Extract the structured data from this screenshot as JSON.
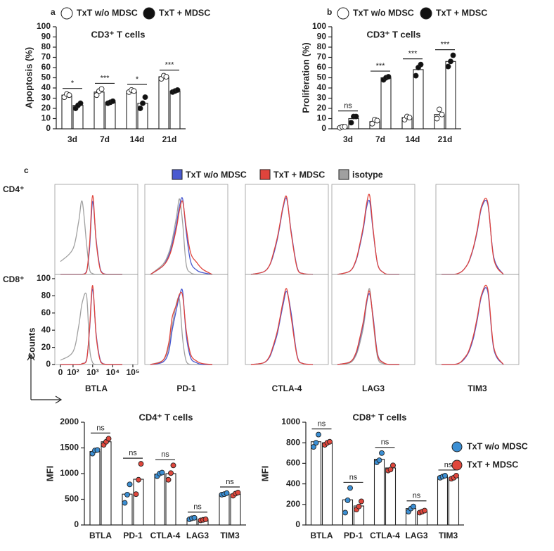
{
  "chart_data": [
    {
      "type": "bar",
      "panel": "a",
      "title": "CD3⁺ T cells",
      "ylabel": "Apoptosis (%)",
      "categories": [
        "3d",
        "7d",
        "14d",
        "21d"
      ],
      "series": [
        {
          "name": "TxT w/o MDSC",
          "color": "#ffffff",
          "values": [
            33,
            36,
            37,
            51
          ],
          "points": [
            [
              31,
              34,
              33
            ],
            [
              33,
              37,
              39
            ],
            [
              36,
              38,
              37
            ],
            [
              49,
              52,
              51
            ]
          ]
        },
        {
          "name": "TxT + MDSC",
          "color": "#111111",
          "values": [
            23,
            26,
            25,
            37
          ],
          "points": [
            [
              20,
              23,
              25
            ],
            [
              25,
              26,
              27
            ],
            [
              20,
              25,
              31
            ],
            [
              36,
              37,
              38
            ]
          ]
        }
      ],
      "sig": [
        "*",
        "***",
        "*",
        "***"
      ],
      "ylim": [
        0,
        100
      ],
      "yticks": [
        0,
        10,
        20,
        30,
        40,
        50,
        60,
        70,
        80,
        90,
        100
      ]
    },
    {
      "type": "bar",
      "panel": "b",
      "title": "CD3⁺ T cells",
      "ylabel": "Proliferation (%)",
      "categories": [
        "3d",
        "7d",
        "14d",
        "21d"
      ],
      "series": [
        {
          "name": "TxT w/o MDSC",
          "color": "#ffffff",
          "values": [
            2,
            7,
            11,
            14
          ],
          "points": [
            [
              1,
              2,
              2
            ],
            [
              5,
              9,
              8
            ],
            [
              9,
              12,
              11
            ],
            [
              10,
              19,
              14
            ]
          ]
        },
        {
          "name": "TxT + MDSC",
          "color": "#111111",
          "values": [
            10,
            50,
            58,
            66
          ],
          "points": [
            [
              6,
              12,
              12
            ],
            [
              48,
              50,
              51
            ],
            [
              52,
              60,
              63
            ],
            [
              61,
              66,
              72
            ]
          ]
        }
      ],
      "sig": [
        "ns",
        "***",
        "***",
        "***"
      ],
      "ylim": [
        0,
        100
      ],
      "yticks": [
        0,
        10,
        20,
        30,
        40,
        50,
        60,
        70,
        80,
        90,
        100
      ]
    },
    {
      "type": "histogram-overlay",
      "panel": "c",
      "ylabel": "Counts",
      "legend": [
        {
          "name": "TxT w/o MDSC",
          "color": "#4a5ad0"
        },
        {
          "name": "TxT + MDSC",
          "color": "#e0443c"
        },
        {
          "name": "isotype",
          "color": "#a0a0a0"
        }
      ],
      "rows": [
        "CD4⁺",
        "CD8⁺"
      ],
      "markers": [
        "BTLA",
        "PD-1",
        "CTLA-4",
        "LAG3",
        "TIM3"
      ],
      "x": [
        0,
        100,
        200,
        300,
        500,
        700,
        1000,
        1500,
        2500,
        5000,
        10000,
        30000
      ],
      "xlim": [
        -25,
        150000
      ],
      "xticks": [
        0,
        {
          "value": 100,
          "label": "10²"
        },
        {
          "value": 1000,
          "label": "10³"
        },
        {
          "value": 10000,
          "label": "10⁴"
        },
        {
          "value": 100000,
          "label": "10⁵"
        }
      ],
      "ylim": [
        0,
        100
      ],
      "yticks": [
        0,
        20,
        40,
        60,
        80,
        100
      ],
      "panels": [
        [
          [
            [
              0,
              0,
              0,
              0,
              4,
              30,
              85,
              40,
              5,
              0,
              0,
              0
            ],
            [
              0,
              0,
              0,
              0,
              3,
              35,
              92,
              38,
              4,
              0,
              0,
              0
            ],
            [
              15,
              30,
              62,
              85,
              35,
              6,
              1,
              0,
              0,
              0,
              0,
              0
            ]
          ],
          [
            [
              0,
              10,
              22,
              35,
              60,
              80,
              88,
              50,
              15,
              5,
              2,
              0
            ],
            [
              0,
              10,
              20,
              32,
              55,
              75,
              85,
              55,
              25,
              14,
              6,
              0
            ],
            [
              0,
              12,
              25,
              40,
              68,
              88,
              60,
              12,
              2,
              0,
              0,
              0
            ]
          ],
          [
            [
              0,
              3,
              10,
              20,
              40,
              58,
              78,
              88,
              50,
              8,
              1,
              0
            ],
            [
              0,
              3,
              10,
              22,
              42,
              60,
              80,
              90,
              48,
              7,
              1,
              0
            ],
            null
          ],
          [
            [
              0,
              4,
              15,
              30,
              55,
              78,
              85,
              50,
              12,
              2,
              0,
              0
            ],
            [
              0,
              4,
              16,
              32,
              58,
              82,
              92,
              52,
              12,
              2,
              0,
              0
            ],
            null
          ],
          [
            [
              0,
              0,
              2,
              5,
              12,
              20,
              32,
              50,
              78,
              82,
              20,
              0
            ],
            [
              0,
              0,
              2,
              5,
              12,
              21,
              33,
              52,
              80,
              84,
              18,
              0
            ],
            null
          ]
        ],
        [
          [
            [
              0,
              0,
              0,
              1,
              6,
              40,
              88,
              35,
              4,
              0,
              0,
              0
            ],
            [
              0,
              0,
              0,
              1,
              5,
              42,
              92,
              33,
              3,
              0,
              0,
              0
            ],
            [
              5,
              15,
              45,
              72,
              80,
              20,
              2,
              0,
              0,
              0,
              0,
              0
            ]
          ],
          [
            [
              0,
              3,
              15,
              40,
              65,
              80,
              85,
              35,
              8,
              2,
              0,
              0
            ],
            [
              0,
              5,
              25,
              55,
              70,
              82,
              80,
              40,
              12,
              4,
              1,
              0
            ],
            [
              0,
              5,
              20,
              45,
              72,
              75,
              30,
              4,
              0,
              0,
              0,
              0
            ]
          ],
          [
            [
              0,
              2,
              8,
              18,
              35,
              52,
              70,
              85,
              60,
              10,
              1,
              0
            ],
            [
              0,
              2,
              9,
              20,
              38,
              55,
              74,
              88,
              55,
              9,
              1,
              0
            ],
            null
          ],
          [
            [
              0,
              3,
              12,
              26,
              50,
              72,
              82,
              55,
              12,
              2,
              0,
              0
            ],
            [
              0,
              3,
              13,
              28,
              52,
              74,
              85,
              52,
              11,
              2,
              0,
              0
            ],
            [
              0,
              2,
              10,
              22,
              45,
              70,
              88,
              50,
              8,
              1,
              0,
              0
            ]
          ],
          [
            [
              0,
              0,
              2,
              5,
              12,
              20,
              32,
              52,
              80,
              85,
              18,
              0
            ],
            [
              0,
              0,
              2,
              6,
              13,
              22,
              35,
              55,
              82,
              88,
              20,
              0
            ],
            null
          ]
        ]
      ]
    },
    {
      "type": "bar",
      "title": "CD4⁺ T cells",
      "ylabel": "MFI",
      "categories": [
        "BTLA",
        "PD-1",
        "CTLA-4",
        "LAG3",
        "TIM3"
      ],
      "series": [
        {
          "color": "#3b8fd4",
          "values": [
            1430,
            600,
            990,
            125,
            600
          ],
          "points": [
            [
              1390,
              1450,
              1460
            ],
            [
              430,
              590,
              790
            ],
            [
              950,
              1000,
              1020
            ],
            [
              110,
              130,
              140
            ],
            [
              590,
              600,
              620
            ]
          ]
        },
        {
          "color": "#e0473c",
          "values": [
            1620,
            890,
            1000,
            100,
            600
          ],
          "points": [
            [
              1560,
              1620,
              1680
            ],
            [
              600,
              880,
              1190
            ],
            [
              880,
              1010,
              1160
            ],
            [
              90,
              100,
              110
            ],
            [
              570,
              610,
              630
            ]
          ]
        }
      ],
      "sig": [
        "ns",
        "ns",
        "ns",
        "ns",
        "ns"
      ],
      "ylim": [
        0,
        2000
      ],
      "yticks": [
        0,
        500,
        1000,
        1500,
        2000
      ]
    },
    {
      "type": "bar",
      "title": "CD8⁺ T cells",
      "ylabel": "MFI",
      "categories": [
        "BTLA",
        "PD-1",
        "CTLA-4",
        "LAG3",
        "TIM3"
      ],
      "series": [
        {
          "name": "TxT w/o MDSC",
          "color": "#3b8fd4",
          "values": [
            810,
            245,
            640,
            160,
            470
          ],
          "points": [
            [
              760,
              800,
              880
            ],
            [
              120,
              240,
              360
            ],
            [
              610,
              630,
              700
            ],
            [
              130,
              160,
              180
            ],
            [
              460,
              470,
              480
            ]
          ]
        },
        {
          "name": "TxT + MDSC",
          "color": "#e0473c",
          "values": [
            800,
            185,
            555,
            130,
            460
          ],
          "points": [
            [
              780,
              800,
              810
            ],
            [
              150,
              180,
              230
            ],
            [
              530,
              540,
              580
            ],
            [
              120,
              130,
              140
            ],
            [
              450,
              460,
              480
            ]
          ]
        }
      ],
      "sig": [
        "ns",
        "ns",
        "ns",
        "ns",
        "ns"
      ],
      "ylim": [
        0,
        1000
      ],
      "yticks": [
        0,
        200,
        400,
        600,
        800,
        1000
      ]
    }
  ]
}
